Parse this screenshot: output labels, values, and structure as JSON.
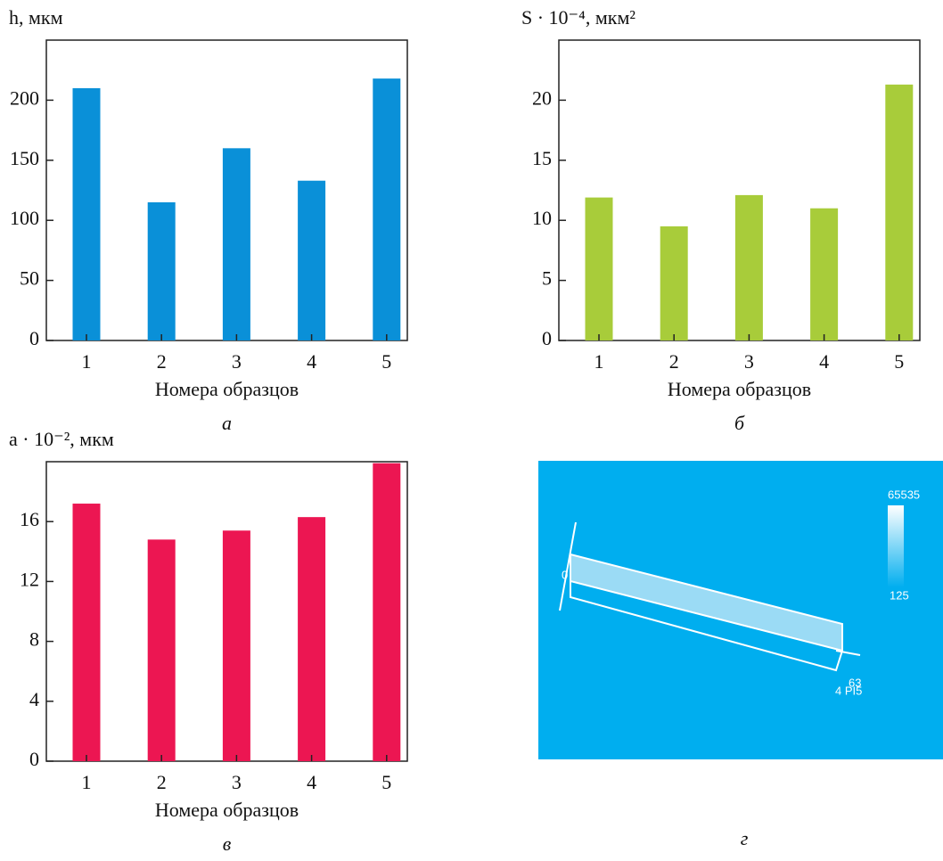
{
  "chart_data": [
    {
      "type": "bar",
      "y_label": "h, мкм",
      "x_label": "Номера образцов",
      "caption": "а",
      "categories": [
        "1",
        "2",
        "3",
        "4",
        "5"
      ],
      "values": [
        210,
        115,
        160,
        133,
        218
      ],
      "color": "#0a90d8",
      "ylim": [
        0,
        250
      ],
      "yticks": [
        0,
        50,
        100,
        150,
        200
      ]
    },
    {
      "type": "bar",
      "y_label": "S · 10⁻⁴, мкм²",
      "x_label": "Номера образцов",
      "caption": "б",
      "categories": [
        "1",
        "2",
        "3",
        "4",
        "5"
      ],
      "values": [
        11.9,
        9.5,
        12.1,
        11.0,
        21.3
      ],
      "color": "#a8cc3a",
      "ylim": [
        0,
        25
      ],
      "yticks": [
        0,
        5,
        10,
        15,
        20
      ]
    },
    {
      "type": "bar",
      "y_label": "a · 10⁻², мкм",
      "x_label": "Номера образцов",
      "caption": "в",
      "categories": [
        "1",
        "2",
        "3",
        "4",
        "5"
      ],
      "values": [
        17.2,
        14.8,
        15.4,
        16.3,
        19.9
      ],
      "color": "#ec1652",
      "ylim": [
        0,
        20
      ],
      "yticks": [
        0,
        4,
        8,
        12,
        16
      ]
    }
  ],
  "image_panel": {
    "caption": "г",
    "colorbar_max": "65535",
    "colorbar_min": "125",
    "labels": [
      "0",
      "63",
      "4 PI5"
    ]
  }
}
